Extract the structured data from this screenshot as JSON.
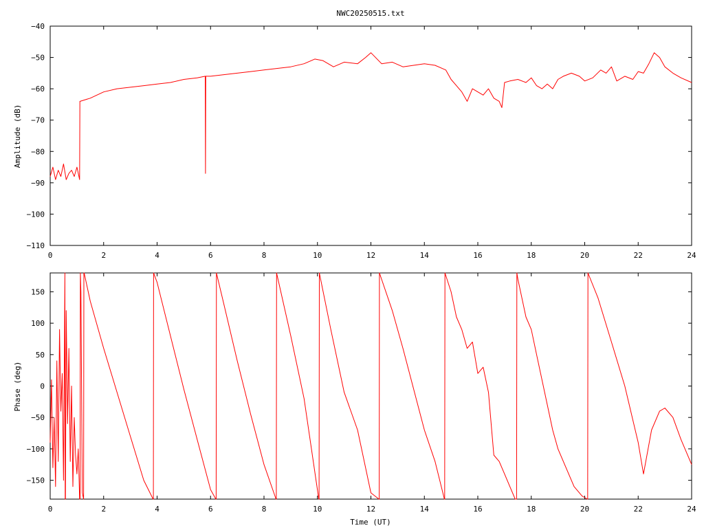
{
  "title": "NWC20250515.txt",
  "series_color": "#ff0000",
  "chart_data": [
    {
      "type": "line",
      "name": "amplitude",
      "ylabel": "Amplitude (dB)",
      "xlabel": "",
      "xlim": [
        0,
        24
      ],
      "ylim": [
        -110,
        -40
      ],
      "xticks": [
        0,
        2,
        4,
        6,
        8,
        10,
        12,
        14,
        16,
        18,
        20,
        22,
        24
      ],
      "yticks": [
        -40,
        -50,
        -60,
        -70,
        -80,
        -90,
        -100,
        -110
      ],
      "grid": false,
      "x": [
        0.0,
        0.1,
        0.2,
        0.3,
        0.4,
        0.5,
        0.6,
        0.7,
        0.8,
        0.9,
        1.0,
        1.1,
        1.11,
        1.12,
        1.5,
        2.0,
        2.5,
        3.0,
        3.5,
        4.0,
        4.5,
        5.0,
        5.5,
        5.8,
        5.81,
        5.82,
        6.0,
        6.5,
        7.0,
        7.5,
        8.0,
        8.5,
        9.0,
        9.5,
        9.9,
        10.2,
        10.6,
        11.0,
        11.5,
        11.8,
        12.0,
        12.4,
        12.8,
        13.2,
        13.6,
        14.0,
        14.4,
        14.8,
        15.0,
        15.2,
        15.4,
        15.6,
        15.8,
        16.0,
        16.2,
        16.4,
        16.6,
        16.8,
        16.9,
        17.0,
        17.2,
        17.5,
        17.8,
        18.0,
        18.2,
        18.4,
        18.6,
        18.8,
        19.0,
        19.2,
        19.5,
        19.8,
        20.0,
        20.3,
        20.6,
        20.8,
        21.0,
        21.2,
        21.5,
        21.8,
        22.0,
        22.2,
        22.4,
        22.6,
        22.8,
        23.0,
        23.3,
        23.6,
        24.0
      ],
      "y": [
        -88,
        -85,
        -89,
        -86,
        -88,
        -84,
        -89,
        -87,
        -86,
        -88,
        -85,
        -89,
        -64,
        -64,
        -63,
        -61,
        -60,
        -59.5,
        -59,
        -58.5,
        -58,
        -57,
        -56.5,
        -56,
        -87,
        -56,
        -56,
        -55.5,
        -55,
        -54.5,
        -54,
        -53.5,
        -53,
        -52,
        -50.5,
        -51,
        -53,
        -51.5,
        -52,
        -50,
        -48.5,
        -52,
        -51.5,
        -53,
        -52.5,
        -52,
        -52.5,
        -54,
        -57,
        -59,
        -61,
        -64,
        -60,
        -61,
        -62,
        -60,
        -63,
        -64,
        -66,
        -58,
        -57.5,
        -57,
        -58,
        -56.5,
        -59,
        -60,
        -58.5,
        -60,
        -57,
        -56,
        -55,
        -56,
        -57.5,
        -56.5,
        -54,
        -55,
        -53,
        -57.5,
        -56,
        -57,
        -54.5,
        -55,
        -52,
        -48.5,
        -50,
        -53,
        -55,
        -56.5,
        -58
      ]
    },
    {
      "type": "line",
      "name": "phase",
      "ylabel": "Phase (deg)",
      "xlabel": "Time (UT)",
      "xlim": [
        0,
        24
      ],
      "ylim": [
        -180,
        180
      ],
      "xticks": [
        0,
        2,
        4,
        6,
        8,
        10,
        12,
        14,
        16,
        18,
        20,
        22,
        24
      ],
      "yticks": [
        150,
        100,
        50,
        0,
        -50,
        -100,
        -150
      ],
      "grid": false,
      "x": [
        0.0,
        0.05,
        0.1,
        0.15,
        0.2,
        0.25,
        0.3,
        0.35,
        0.4,
        0.45,
        0.5,
        0.55,
        0.56,
        0.57,
        0.6,
        0.65,
        0.7,
        0.75,
        0.8,
        0.85,
        0.9,
        0.95,
        1.0,
        1.05,
        1.1,
        1.12,
        1.13,
        1.15,
        1.2,
        1.25,
        1.26,
        1.27,
        1.5,
        2.0,
        2.5,
        3.0,
        3.5,
        3.85,
        3.86,
        3.87,
        4.0,
        4.5,
        5.0,
        5.5,
        6.0,
        6.2,
        6.21,
        6.22,
        6.5,
        7.0,
        7.5,
        8.0,
        8.45,
        8.46,
        8.47,
        9.0,
        9.5,
        10.05,
        10.06,
        10.07,
        10.5,
        11.0,
        11.5,
        12.0,
        12.3,
        12.31,
        12.32,
        12.8,
        13.2,
        13.6,
        14.0,
        14.4,
        14.75,
        14.76,
        14.77,
        15.0,
        15.2,
        15.4,
        15.6,
        15.8,
        16.0,
        16.2,
        16.4,
        16.6,
        16.8,
        17.0,
        17.2,
        17.4,
        17.45,
        17.46,
        17.5,
        17.8,
        18.0,
        18.2,
        18.5,
        18.8,
        19.0,
        19.3,
        19.6,
        19.9,
        20.1,
        20.11,
        20.12,
        20.5,
        21.0,
        21.5,
        22.0,
        22.2,
        22.5,
        22.8,
        23.0,
        23.3,
        23.6,
        24.0
      ],
      "y": [
        -90,
        10,
        -130,
        -50,
        -160,
        40,
        -120,
        90,
        -40,
        20,
        -150,
        180,
        -180,
        -180,
        120,
        -60,
        60,
        -120,
        0,
        -160,
        -50,
        -110,
        -140,
        -100,
        -180,
        -180,
        180,
        150,
        -170,
        -180,
        180,
        180,
        135,
        60,
        -10,
        -80,
        -150,
        -180,
        -180,
        180,
        165,
        80,
        -5,
        -85,
        -165,
        -180,
        -180,
        180,
        130,
        40,
        -45,
        -125,
        -180,
        -180,
        180,
        80,
        -20,
        -180,
        -180,
        180,
        90,
        -10,
        -70,
        -170,
        -180,
        -180,
        180,
        120,
        60,
        -5,
        -70,
        -120,
        -180,
        -180,
        180,
        150,
        110,
        90,
        60,
        70,
        20,
        30,
        -10,
        -110,
        -120,
        -140,
        -160,
        -180,
        -180,
        180,
        170,
        110,
        90,
        50,
        -10,
        -70,
        -100,
        -130,
        -160,
        -175,
        -180,
        -180,
        180,
        140,
        70,
        0,
        -90,
        -140,
        -70,
        -40,
        -35,
        -50,
        -85,
        -125
      ]
    }
  ]
}
